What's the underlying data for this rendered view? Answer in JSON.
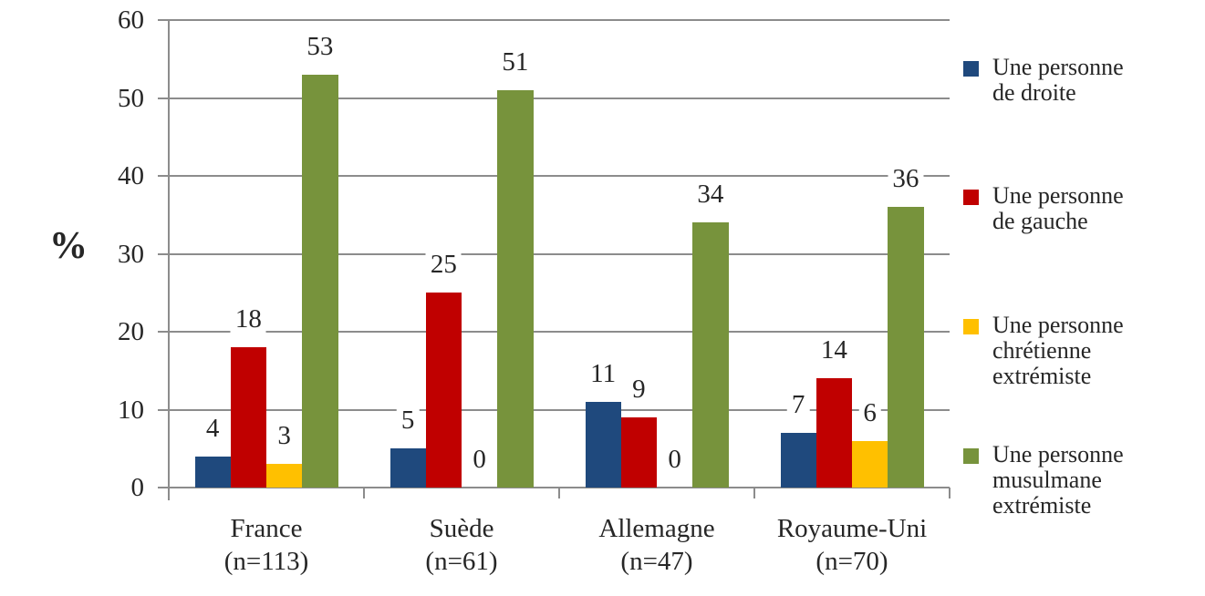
{
  "chart_data": {
    "type": "bar",
    "title": "",
    "ylabel": "%",
    "ylim": [
      0,
      60
    ],
    "yticks": [
      0,
      10,
      20,
      30,
      40,
      50,
      60
    ],
    "grid": true,
    "legend_position": "right",
    "data_labels": true,
    "categories": [
      "France",
      "Suède",
      "Allemagne",
      "Royaume-Uni"
    ],
    "category_counts": [
      "(n=113)",
      "(n=61)",
      "(n=47)",
      "(n=70)"
    ],
    "series": [
      {
        "name": "Une personne de droite",
        "legend_lines": [
          "Une personne",
          "de droite"
        ],
        "color": "#1F497D",
        "values": [
          4,
          5,
          11,
          7
        ]
      },
      {
        "name": "Une personne de gauche",
        "legend_lines": [
          "Une personne",
          "de gauche"
        ],
        "color": "#C00000",
        "values": [
          18,
          25,
          9,
          14
        ]
      },
      {
        "name": "Une personne chrétienne extrémiste",
        "legend_lines": [
          "Une personne",
          "chrétienne",
          "extrémiste"
        ],
        "color": "#FFC000",
        "values": [
          3,
          0,
          0,
          6
        ]
      },
      {
        "name": "Une personne musulmane extrémiste",
        "legend_lines": [
          "Une personne",
          "musulmane",
          "extrémiste"
        ],
        "color": "#77933C",
        "values": [
          53,
          51,
          34,
          36
        ]
      }
    ]
  },
  "colors": {
    "grid": "#8C8C8C",
    "axis": "#8C8C8C",
    "text": "#262626",
    "background": "#FFFFFF"
  }
}
